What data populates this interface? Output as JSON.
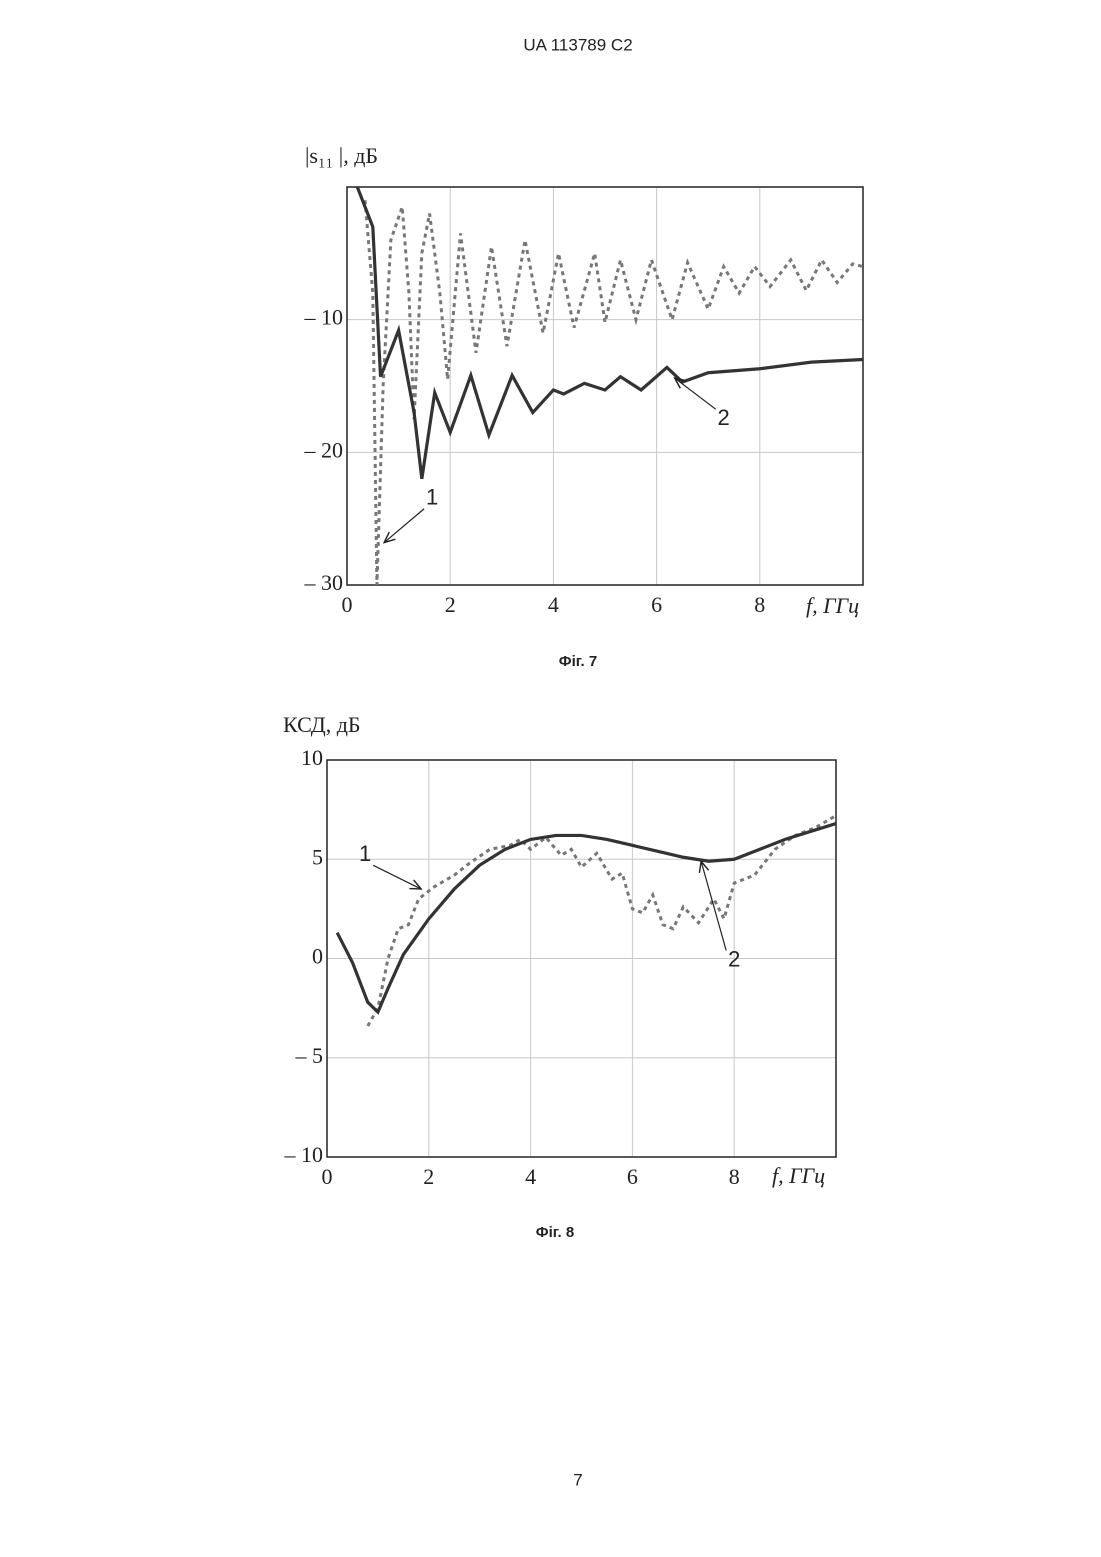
{
  "header": {
    "text": "UA   113789   C2"
  },
  "page_number": "7",
  "chart_data": [
    {
      "type": "line",
      "caption": "Фіг. 7",
      "ylabel": "|s₁₁ |, дБ",
      "xlabel": "f, ГГц",
      "xlim": [
        0,
        10
      ],
      "ylim": [
        -30,
        0
      ],
      "xticks": [
        0,
        2,
        4,
        6,
        8
      ],
      "yticks": [
        {
          "value": -30,
          "label": "– 30"
        },
        {
          "value": -20,
          "label": "– 20"
        },
        {
          "value": -10,
          "label": "– 10"
        }
      ],
      "grid": true,
      "series": [
        {
          "name": "1",
          "color": "#777777",
          "style": "dashed",
          "x": [
            0.35,
            0.5,
            0.58,
            0.7,
            0.85,
            1.07,
            1.2,
            1.3,
            1.45,
            1.6,
            1.8,
            1.95,
            2.2,
            2.5,
            2.8,
            3.1,
            3.45,
            3.8,
            4.1,
            4.4,
            4.8,
            5.0,
            5.3,
            5.6,
            5.9,
            6.3,
            6.6,
            7.0,
            7.3,
            7.6,
            7.9,
            8.2,
            8.6,
            8.9,
            9.2,
            9.5,
            9.8,
            10
          ],
          "values": [
            -1,
            -8,
            -30,
            -15,
            -4,
            -1.5,
            -8,
            -17.5,
            -5,
            -2,
            -8,
            -14.5,
            -3.5,
            -12.5,
            -4.5,
            -12,
            -4,
            -11,
            -5,
            -10.6,
            -5,
            -10.2,
            -5.5,
            -10,
            -5.5,
            -10,
            -5.7,
            -9.2,
            -6,
            -8,
            -6,
            -7.5,
            -5.5,
            -7.8,
            -5.5,
            -7.2,
            -5.8,
            -6
          ]
        },
        {
          "name": "2",
          "color": "#333333",
          "style": "solid",
          "x": [
            0.2,
            0.5,
            0.65,
            1.0,
            1.3,
            1.45,
            1.7,
            2.0,
            2.4,
            2.75,
            3.2,
            3.6,
            4.0,
            4.2,
            4.6,
            5.0,
            5.3,
            5.7,
            6.2,
            6.5,
            7.0,
            8.0,
            9.0,
            10
          ],
          "values": [
            0,
            -3,
            -14.3,
            -10.8,
            -17,
            -22,
            -15.5,
            -18.5,
            -14.2,
            -18.7,
            -14.2,
            -17,
            -15.3,
            -15.6,
            -14.8,
            -15.3,
            -14.3,
            -15.3,
            -13.6,
            -14.7,
            -14.0,
            -13.7,
            -13.2,
            -13.0
          ]
        }
      ]
    },
    {
      "type": "line",
      "caption": "Фіг. 8",
      "ylabel": "КСД, дБ",
      "xlabel": "f, ГГц",
      "xlim": [
        0,
        10
      ],
      "ylim": [
        -10,
        10
      ],
      "xticks": [
        0,
        2,
        4,
        6,
        8
      ],
      "yticks": [
        {
          "value": -10,
          "label": "– 10"
        },
        {
          "value": -5,
          "label": "– 5"
        },
        0,
        5,
        10
      ],
      "grid": true,
      "series": [
        {
          "name": "1",
          "color": "#777777",
          "style": "dashed",
          "x": [
            0.8,
            1.0,
            1.2,
            1.4,
            1.6,
            1.8,
            2.1,
            2.5,
            2.8,
            3.2,
            3.6,
            3.8,
            4.0,
            4.3,
            4.6,
            4.8,
            5.0,
            5.3,
            5.6,
            5.8,
            6.0,
            6.2,
            6.4,
            6.6,
            6.8,
            7.0,
            7.3,
            7.6,
            7.8,
            8.0,
            8.4,
            8.8,
            9.2,
            9.6,
            10
          ],
          "values": [
            -3.4,
            -2.5,
            0,
            1.5,
            1.7,
            3,
            3.6,
            4.2,
            4.8,
            5.5,
            5.7,
            6.0,
            5.5,
            6.1,
            5.2,
            5.5,
            4.6,
            5.3,
            4.0,
            4.3,
            2.5,
            2.3,
            3.2,
            1.7,
            1.5,
            2.6,
            1.8,
            3.0,
            2.0,
            3.8,
            4.2,
            5.5,
            6.2,
            6.6,
            7.2
          ]
        },
        {
          "name": "2",
          "color": "#333333",
          "style": "solid",
          "x": [
            0.2,
            0.5,
            0.8,
            1.0,
            1.2,
            1.5,
            2,
            2.5,
            3,
            3.5,
            4,
            4.5,
            5,
            5.5,
            6,
            6.5,
            7,
            7.5,
            8,
            8.5,
            9,
            9.5,
            10
          ],
          "values": [
            1.3,
            -0.2,
            -2.2,
            -2.7,
            -1.5,
            0.2,
            2.0,
            3.5,
            4.7,
            5.5,
            6.0,
            6.2,
            6.2,
            6.0,
            5.7,
            5.4,
            5.1,
            4.9,
            5.0,
            5.5,
            6.0,
            6.4,
            6.8
          ]
        }
      ]
    }
  ]
}
